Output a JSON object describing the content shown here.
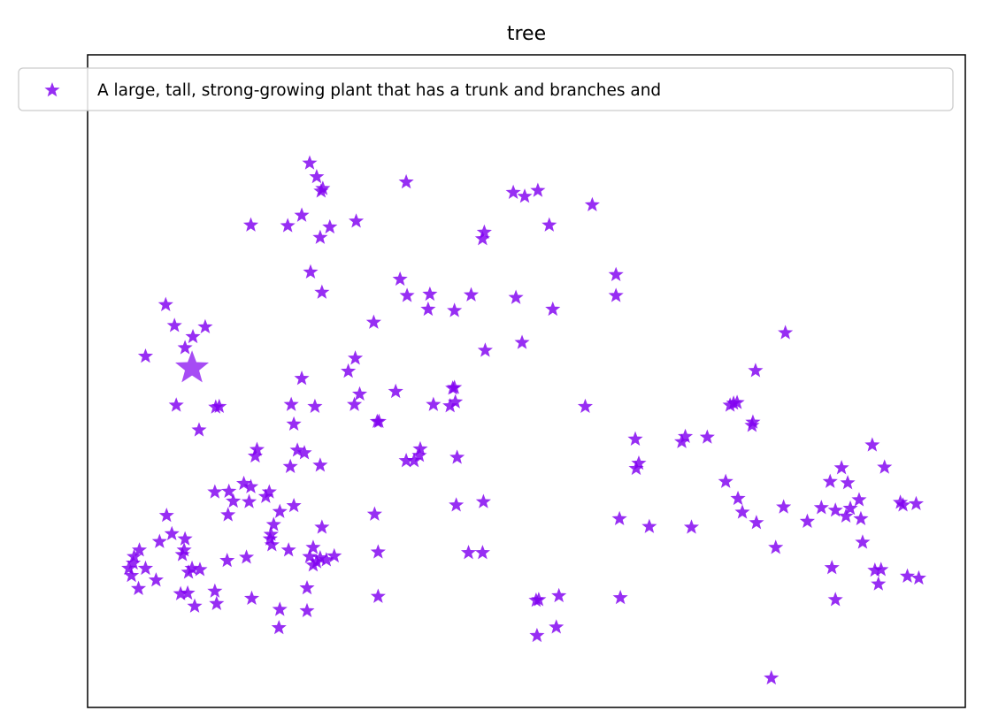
{
  "chart_data": {
    "type": "scatter",
    "title": "tree",
    "xlabel": "",
    "ylabel": "",
    "xlim": [
      0,
      1000
    ],
    "ylim": [
      0,
      1000
    ],
    "grid": false,
    "ticks": false,
    "legend": {
      "placement": "top",
      "entries": [
        "A large, tall, strong-growing plant that has a trunk and branches and"
      ]
    },
    "marker": "star",
    "color": "#8000f0",
    "highlight": {
      "x": 119,
      "y": 520
    },
    "series": [
      {
        "name": "A large, tall, strong-growing plant that has a trunk and branches and",
        "points": [
          [
            253,
            834
          ],
          [
            261,
            813
          ],
          [
            268,
            795
          ],
          [
            266,
            791
          ],
          [
            186,
            739
          ],
          [
            244,
            754
          ],
          [
            228,
            738
          ],
          [
            265,
            720
          ],
          [
            276,
            736
          ],
          [
            306,
            745
          ],
          [
            363,
            805
          ],
          [
            485,
            789
          ],
          [
            498,
            783
          ],
          [
            513,
            792
          ],
          [
            575,
            770
          ],
          [
            526,
            739
          ],
          [
            452,
            728
          ],
          [
            450,
            718
          ],
          [
            602,
            663
          ],
          [
            602,
            631
          ],
          [
            254,
            667
          ],
          [
            267,
            636
          ],
          [
            356,
            656
          ],
          [
            364,
            631
          ],
          [
            390,
            633
          ],
          [
            437,
            632
          ],
          [
            418,
            608
          ],
          [
            388,
            610
          ],
          [
            326,
            590
          ],
          [
            244,
            504
          ],
          [
            297,
            515
          ],
          [
            305,
            535
          ],
          [
            310,
            480
          ],
          [
            304,
            464
          ],
          [
            351,
            484
          ],
          [
            332,
            438
          ],
          [
            416,
            489
          ],
          [
            418,
            490
          ],
          [
            394,
            464
          ],
          [
            495,
            559
          ],
          [
            530,
            610
          ],
          [
            488,
            628
          ],
          [
            419,
            468
          ],
          [
            89,
            617
          ],
          [
            99,
            585
          ],
          [
            134,
            583
          ],
          [
            120,
            568
          ],
          [
            111,
            551
          ],
          [
            66,
            538
          ],
          [
            101,
            463
          ],
          [
            127,
            425
          ],
          [
            146,
            460
          ],
          [
            150,
            461
          ],
          [
            232,
            464
          ],
          [
            235,
            434
          ],
          [
            259,
            461
          ],
          [
            330,
            438
          ],
          [
            413,
            462
          ],
          [
            453,
            547
          ],
          [
            372,
            378
          ],
          [
            421,
            383
          ],
          [
            451,
            315
          ],
          [
            420,
            310
          ],
          [
            379,
            396
          ],
          [
            363,
            378
          ],
          [
            378,
            386
          ],
          [
            434,
            237
          ],
          [
            327,
            296
          ],
          [
            247,
            390
          ],
          [
            239,
            394
          ],
          [
            193,
            395
          ],
          [
            191,
            385
          ],
          [
            265,
            371
          ],
          [
            231,
            369
          ],
          [
            203,
            323
          ],
          [
            212,
            280
          ],
          [
            161,
            331
          ],
          [
            186,
            338
          ],
          [
            178,
            343
          ],
          [
            235,
            309
          ],
          [
            166,
            316
          ],
          [
            145,
            330
          ],
          [
            160,
            295
          ],
          [
            184,
            315
          ],
          [
            219,
            300
          ],
          [
            207,
            330
          ],
          [
            210,
            249
          ],
          [
            208,
            258
          ],
          [
            281,
            232
          ],
          [
            253,
            231
          ],
          [
            272,
            226
          ],
          [
            229,
            241
          ],
          [
            181,
            230
          ],
          [
            159,
            225
          ],
          [
            250,
            183
          ],
          [
            219,
            150
          ],
          [
            331,
            238
          ],
          [
            450,
            237
          ],
          [
            567,
            461
          ],
          [
            681,
            415
          ],
          [
            732,
            463
          ],
          [
            736,
            466
          ],
          [
            740,
            467
          ],
          [
            761,
            516
          ],
          [
            795,
            574
          ],
          [
            757,
            432
          ],
          [
            624,
            411
          ],
          [
            625,
            366
          ],
          [
            677,
            407
          ],
          [
            606,
            289
          ],
          [
            628,
            374
          ],
          [
            706,
            414
          ],
          [
            758,
            437
          ],
          [
            894,
            402
          ],
          [
            908,
            368
          ],
          [
            859,
            367
          ],
          [
            846,
            346
          ],
          [
            866,
            344
          ],
          [
            879,
            318
          ],
          [
            869,
            305
          ],
          [
            864,
            293
          ],
          [
            852,
            302
          ],
          [
            836,
            306
          ],
          [
            784,
            245
          ],
          [
            820,
            285
          ],
          [
            848,
            214
          ],
          [
            881,
            289
          ],
          [
            901,
            189
          ],
          [
            852,
            165
          ],
          [
            883,
            253
          ],
          [
            897,
            210
          ],
          [
            934,
            201
          ],
          [
            947,
            198
          ],
          [
            929,
            310
          ],
          [
            944,
            312
          ],
          [
            926,
            314
          ],
          [
            904,
            211
          ],
          [
            779,
            45
          ],
          [
            746,
            299
          ],
          [
            741,
            320
          ],
          [
            762,
            283
          ],
          [
            793,
            307
          ],
          [
            688,
            276
          ],
          [
            640,
            277
          ],
          [
            727,
            346
          ],
          [
            512,
            110
          ],
          [
            534,
            123
          ],
          [
            514,
            165
          ],
          [
            511,
            164
          ],
          [
            607,
            168
          ],
          [
            537,
            171
          ],
          [
            331,
            170
          ],
          [
            267,
            276
          ],
          [
            265,
            229
          ],
          [
            257,
            245
          ],
          [
            209,
            265
          ],
          [
            106,
            174
          ],
          [
            115,
            207
          ],
          [
            114,
            175
          ],
          [
            50,
            202
          ],
          [
            53,
            231
          ],
          [
            52,
            221
          ],
          [
            58,
            182
          ],
          [
            47,
            213
          ],
          [
            78,
            195
          ],
          [
            59,
            241
          ],
          [
            66,
            213
          ],
          [
            82,
            254
          ],
          [
            96,
            266
          ],
          [
            108,
            234
          ],
          [
            111,
            258
          ],
          [
            90,
            294
          ],
          [
            110,
            241
          ],
          [
            119,
            213
          ],
          [
            145,
            178
          ],
          [
            147,
            159
          ],
          [
            122,
            155
          ],
          [
            128,
            211
          ],
          [
            187,
            167
          ],
          [
            218,
            122
          ],
          [
            250,
            148
          ],
          [
            257,
            218
          ],
          [
            261,
            223
          ]
        ]
      }
    ]
  }
}
